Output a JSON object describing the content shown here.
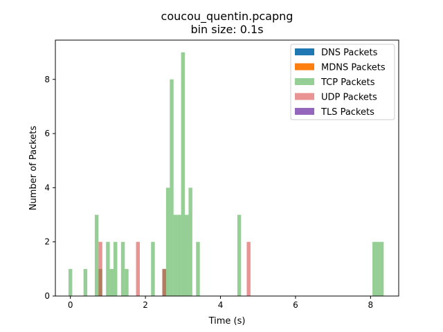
{
  "chart_data": {
    "type": "bar",
    "title": "coucou_quentin.pcapng",
    "subtitle": "bin size: 0.1s",
    "xlabel": "Time (s)",
    "ylabel": "Number of Packets",
    "xlim": [
      -0.4,
      8.75
    ],
    "ylim": [
      0,
      9.45
    ],
    "bin_width": 0.1,
    "xticks": [
      0,
      2,
      4,
      6,
      8
    ],
    "yticks": [
      0,
      2,
      4,
      6,
      8
    ],
    "grid": false,
    "legend_position": "top-right",
    "series": [
      {
        "name": "DNS Packets",
        "color": "#1f77b4",
        "alpha": 1.0,
        "points": []
      },
      {
        "name": "MDNS Packets",
        "color": "#ff7f0e",
        "alpha": 1.0,
        "points": []
      },
      {
        "name": "TCP Packets",
        "color": "#2ca02c",
        "alpha": 0.5,
        "points": [
          {
            "x": 0.0,
            "y": 1
          },
          {
            "x": 0.4,
            "y": 1
          },
          {
            "x": 0.7,
            "y": 3
          },
          {
            "x": 0.8,
            "y": 1
          },
          {
            "x": 1.0,
            "y": 2
          },
          {
            "x": 1.1,
            "y": 1
          },
          {
            "x": 1.2,
            "y": 2
          },
          {
            "x": 1.4,
            "y": 2
          },
          {
            "x": 1.5,
            "y": 1
          },
          {
            "x": 2.2,
            "y": 2
          },
          {
            "x": 2.5,
            "y": 1
          },
          {
            "x": 2.6,
            "y": 4
          },
          {
            "x": 2.7,
            "y": 8
          },
          {
            "x": 2.8,
            "y": 3
          },
          {
            "x": 2.9,
            "y": 3
          },
          {
            "x": 3.0,
            "y": 9
          },
          {
            "x": 3.1,
            "y": 3
          },
          {
            "x": 3.2,
            "y": 4
          },
          {
            "x": 3.4,
            "y": 2
          },
          {
            "x": 4.5,
            "y": 3
          },
          {
            "x": 8.1,
            "y": 2
          },
          {
            "x": 8.2,
            "y": 2
          },
          {
            "x": 8.3,
            "y": 2
          }
        ]
      },
      {
        "name": "UDP Packets",
        "color": "#d62728",
        "alpha": 0.5,
        "points": [
          {
            "x": 0.8,
            "y": 2
          },
          {
            "x": 1.8,
            "y": 2
          },
          {
            "x": 2.5,
            "y": 1
          },
          {
            "x": 4.75,
            "y": 2
          }
        ]
      },
      {
        "name": "TLS Packets",
        "color": "#9467bd",
        "alpha": 1.0,
        "points": []
      }
    ]
  }
}
